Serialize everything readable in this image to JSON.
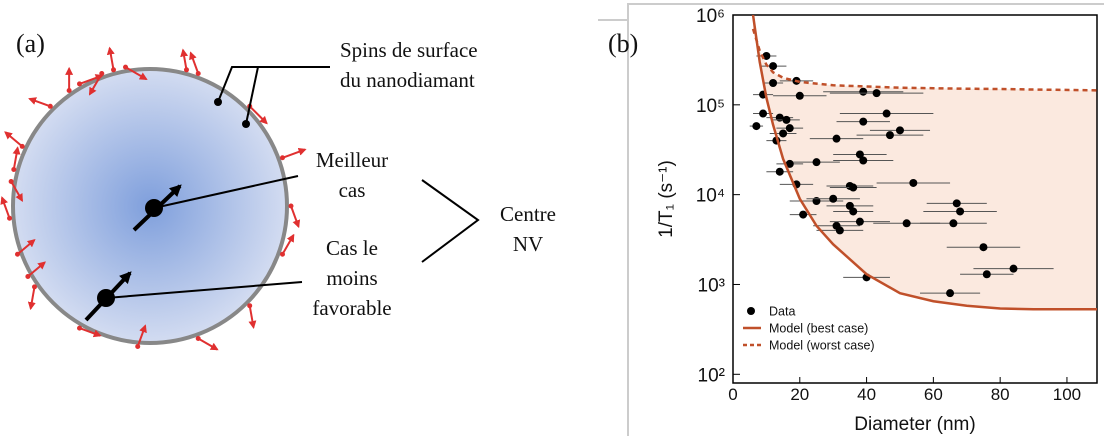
{
  "diagram": {
    "label": "(a)",
    "surface_spins": [
      "Spins de surface",
      "du nanodiamant"
    ],
    "best_case": [
      "Meilleur",
      "cas"
    ],
    "worst_case": [
      "Cas le",
      "moins",
      "favorable"
    ],
    "nv_center": [
      "Centre",
      "NV"
    ]
  },
  "chart_data": {
    "type": "scatter",
    "panel_label": "(b)",
    "xlabel": "Diameter (nm)",
    "ylabel": "1/T₁ (s⁻¹)",
    "xlim": [
      0,
      109
    ],
    "xticks": [
      0,
      20,
      40,
      60,
      80,
      100
    ],
    "ylim": [
      80,
      1000000
    ],
    "log_y": true,
    "yticks": [
      {
        "value": 100,
        "label": "10²"
      },
      {
        "value": 1000,
        "label": "10³"
      },
      {
        "value": 10000,
        "label": "10⁴"
      },
      {
        "value": 100000,
        "label": "10⁵"
      },
      {
        "value": 1000000,
        "label": "10⁶"
      }
    ],
    "legend": "lower left",
    "region_color": "#fbe9df",
    "series": [
      {
        "name": "Data",
        "style": "markers",
        "color": "#000000",
        "x": [
          7,
          9,
          10,
          12,
          12,
          9,
          14,
          16,
          17,
          13,
          15,
          20,
          19,
          17,
          14,
          19,
          21,
          25,
          25,
          31,
          39,
          43,
          39,
          46,
          50,
          47,
          38,
          39,
          35,
          36,
          30,
          35,
          36,
          31,
          32,
          38,
          52,
          54,
          67,
          68,
          66,
          75,
          76,
          84,
          40,
          65
        ],
        "values": [
          58000,
          130000,
          350000,
          270000,
          175000,
          80000,
          72000,
          68000,
          55000,
          40000,
          48000,
          126000,
          185000,
          22000,
          18000,
          13000,
          6000,
          8500,
          23000,
          42000,
          140000,
          135000,
          65000,
          80000,
          52000,
          46000,
          28000,
          24000,
          12500,
          12000,
          9000,
          7500,
          6500,
          4500,
          4000,
          5000,
          4800,
          13500,
          8000,
          6500,
          4800,
          2600,
          1300,
          1500,
          1200,
          800
        ],
        "xerr": [
          2,
          3,
          3,
          4,
          3,
          3,
          4,
          4,
          4,
          3,
          4,
          8,
          5,
          4,
          4,
          5,
          4,
          8,
          7,
          8,
          12,
          14,
          8,
          14,
          9,
          10,
          8,
          9,
          7,
          7,
          8,
          7,
          6,
          7,
          7,
          9,
          10,
          11,
          9,
          11,
          10,
          11,
          8,
          12,
          7,
          9
        ]
      },
      {
        "name": "Model (best case)",
        "style": "solid",
        "color": "#c0502a",
        "x": [
          6,
          8,
          10,
          12,
          15,
          20,
          25,
          30,
          40,
          50,
          60,
          70,
          80,
          90,
          109
        ],
        "values": [
          1000000,
          300000,
          120000,
          60000,
          25000,
          9000,
          4500,
          2800,
          1300,
          800,
          650,
          580,
          540,
          530,
          530
        ]
      },
      {
        "name": "Model (worst case)",
        "style": "dashed",
        "color": "#c0502a",
        "x": [
          6,
          8,
          10,
          12,
          15,
          20,
          25,
          30,
          40,
          50,
          60,
          70,
          80,
          90,
          109
        ],
        "values": [
          700000,
          400000,
          280000,
          230000,
          200000,
          180000,
          172000,
          165000,
          160000,
          155000,
          153000,
          151000,
          150000,
          148000,
          145000
        ]
      }
    ]
  }
}
